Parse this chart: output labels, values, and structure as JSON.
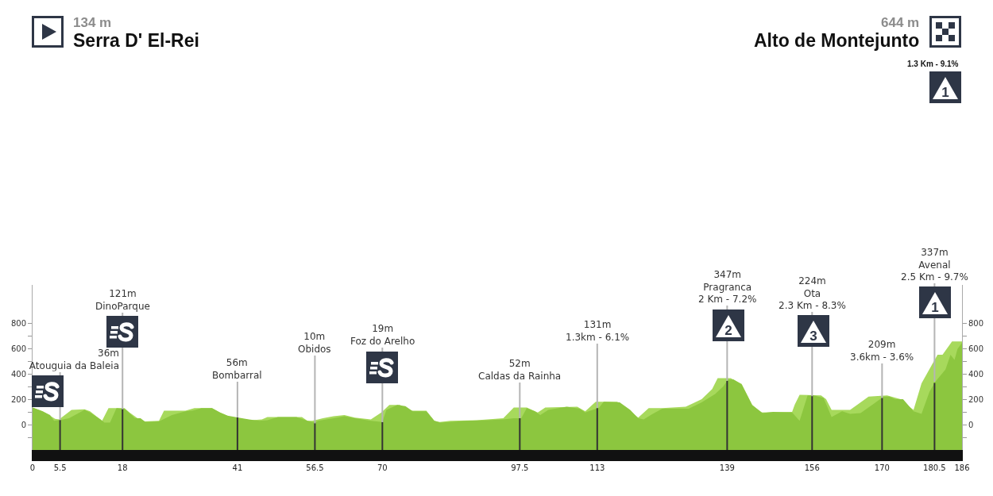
{
  "chart_data": {
    "type": "area",
    "series": [
      {
        "color": "#a7d95c",
        "x": [
          0,
          2,
          3.5,
          4.5,
          5.3,
          7.8,
          10.4,
          11.5,
          13.9,
          15.2,
          18.4,
          19.4,
          21,
          22.4,
          25.3,
          26.3,
          30.6,
          32.4,
          35.9,
          37.5,
          39.6,
          43.8,
          45.9,
          47,
          53.9,
          55,
          56,
          58.1,
          60.2,
          62.4,
          64.5,
          67.7,
          69.8,
          71.4,
          73.5,
          75.6,
          78.8,
          80.4,
          81.5,
          83.6,
          88.9,
          94.2,
          96.3,
          98.9,
          101.1,
          102.6,
          109,
          110.6,
          112.7,
          117,
          119.6,
          121.2,
          123.3,
          126,
          130.7,
          133.9,
          136,
          137.1,
          139.7,
          141.9,
          144,
          145.6,
          152,
          152.5,
          153.5,
          157.8,
          158.8,
          159.9,
          163.6,
          167.3,
          171,
          173.7,
          175.3,
          176.3,
          177.9,
          181.1,
          182.1,
          184,
          186
        ],
        "values": [
          134,
          105,
          70,
          45,
          40,
          115,
          120,
          105,
          30,
          130,
          130,
          95,
          50,
          25,
          30,
          110,
          110,
          130,
          130,
          95,
          60,
          35,
          40,
          60,
          60,
          30,
          30,
          50,
          65,
          75,
          55,
          40,
          95,
          155,
          155,
          110,
          110,
          30,
          20,
          30,
          35,
          50,
          135,
          135,
          95,
          135,
          140,
          105,
          180,
          180,
          105,
          55,
          130,
          130,
          140,
          200,
          280,
          365,
          365,
          320,
          155,
          95,
          100,
          155,
          235,
          230,
          200,
          115,
          115,
          220,
          230,
          200,
          145,
          115,
          325,
          550,
          550,
          655,
          655
        ]
      },
      {
        "color": "#8cc63f",
        "axis": "y2",
        "x": [
          0,
          2,
          3.5,
          4.3,
          5.5,
          7.3,
          10.4,
          11.5,
          13.6,
          14.4,
          15.5,
          16.8,
          18,
          18.4,
          19,
          20.5,
          21.6,
          22.6,
          25.3,
          27.9,
          30.6,
          32,
          33.8,
          35.9,
          37.5,
          39,
          41,
          43.3,
          45.4,
          47,
          49.1,
          52.8,
          55,
          56.5,
          57.1,
          60.2,
          62.4,
          64.5,
          67.7,
          70,
          70.8,
          73,
          74.6,
          76.1,
          78.8,
          80.4,
          81.5,
          83.6,
          86.7,
          91,
          94.2,
          96.3,
          97.8,
          98.9,
          100.5,
          101.6,
          103.2,
          106.9,
          109.5,
          110.6,
          113.4,
          114.3,
          117.5,
          119.6,
          121.2,
          122.3,
          123.9,
          126,
          131.3,
          133.9,
          136.6,
          138.2,
          139.2,
          140.3,
          141.9,
          144,
          146.1,
          148.2,
          152,
          153.5,
          155.1,
          156.3,
          158.3,
          159.9,
          162,
          163.6,
          165.7,
          168.4,
          170.3,
          171.5,
          172.6,
          174.2,
          176.3,
          177.9,
          179.5,
          180.6,
          182.7,
          183.7,
          184.5,
          185.1,
          186
        ],
        "values": [
          134,
          105,
          75,
          30,
          36,
          50,
          115,
          95,
          40,
          15,
          15,
          130,
          125,
          125,
          105,
          50,
          50,
          20,
          25,
          75,
          105,
          110,
          130,
          130,
          95,
          70,
          56,
          40,
          30,
          35,
          60,
          60,
          30,
          15,
          30,
          50,
          65,
          50,
          30,
          20,
          115,
          155,
          145,
          105,
          105,
          30,
          15,
          20,
          30,
          35,
          40,
          50,
          50,
          130,
          105,
          75,
          115,
          140,
          125,
          95,
          135,
          180,
          175,
          115,
          50,
          40,
          80,
          125,
          125,
          175,
          240,
          300,
          355,
          355,
          315,
          155,
          90,
          100,
          95,
          30,
          230,
          230,
          210,
          60,
          105,
          85,
          90,
          165,
          220,
          220,
          200,
          200,
          105,
          85,
          260,
          335,
          435,
          550,
          510,
          595,
          644
        ]
      }
    ],
    "xlim": [
      0,
      186
    ],
    "xticks": [
      0,
      5.5,
      18,
      41,
      56.5,
      70,
      97.5,
      113,
      139,
      156,
      170,
      180.5,
      186
    ],
    "ylim": [
      -200,
      1100
    ],
    "yticks": [
      {
        "value": -100,
        "label": null
      },
      0,
      {
        "value": 100,
        "label": null
      },
      200,
      {
        "value": 300,
        "label": null
      },
      400,
      {
        "value": 500,
        "label": null
      },
      600,
      {
        "value": 700,
        "label": null
      },
      800
    ],
    "y2lim": [
      -200,
      1100
    ],
    "y2ticks": [
      {
        "value": -100,
        "label": null
      },
      0,
      {
        "value": 100,
        "label": null
      },
      200,
      {
        "value": 300,
        "label": null
      },
      400,
      {
        "value": 500,
        "label": null
      },
      600,
      {
        "value": 700,
        "label": null
      },
      800
    ],
    "bands": [
      {
        "axis": "y",
        "from": -200,
        "to": 0,
        "color": "#8cc63f"
      }
    ],
    "ref_lines": [
      {
        "axis": "x",
        "value": 5.5,
        "color": "#333333"
      },
      {
        "axis": "x",
        "value": 18,
        "color": "#333333"
      },
      {
        "axis": "x",
        "value": 41,
        "color": "#333333"
      },
      {
        "axis": "x",
        "value": 56.5,
        "color": "#333333"
      },
      {
        "axis": "x",
        "value": 70,
        "color": "#333333"
      },
      {
        "axis": "x",
        "value": 97.5,
        "color": "#333333"
      },
      {
        "axis": "x",
        "value": 113,
        "color": "#333333"
      },
      {
        "axis": "x",
        "value": 139,
        "color": "#333333"
      },
      {
        "axis": "x",
        "value": 156,
        "color": "#333333"
      },
      {
        "axis": "x",
        "value": 170,
        "color": "#333333"
      },
      {
        "axis": "x",
        "value": 180.5,
        "color": "#333333"
      }
    ],
    "annotations": [
      "134 m",
      "Serra D' El-Rei",
      "644 m",
      "Alto de Montejunto",
      "1.3 Km - 9.1%",
      "1",
      {
        "text": "36m\nAtouguia da Baleia",
        "x": 5.5,
        "y": 36
      },
      {
        "text": "121m\nDinoParque",
        "x": 18,
        "y": 121
      },
      {
        "text": "56m\nBombarral",
        "x": 41,
        "y": 56
      },
      {
        "text": "10m\nObidos",
        "x": 56.5,
        "y": 10
      },
      {
        "text": "19m\nFoz do Arelho",
        "x": 70,
        "y": 19
      },
      {
        "text": "52m\nCaldas da Rainha",
        "x": 97.5,
        "y": 52
      },
      {
        "text": "131m\n1.3km - 6.1%",
        "x": 113,
        "y": 131
      },
      {
        "text": "347m\nPragranca\n2 Km - 7.2%",
        "x": 139,
        "y": 347
      },
      "2",
      {
        "text": "224m\nOta\n2.3 Km - 8.3%",
        "x": 156,
        "y": 224
      },
      "3",
      {
        "text": "209m\n3.6km - 3.6%",
        "x": 170,
        "y": 209
      },
      {
        "text": "337m\nAvenal\n2.5 Km - 9.7%",
        "x": 180.5,
        "y": 337
      },
      "1"
    ]
  }
}
